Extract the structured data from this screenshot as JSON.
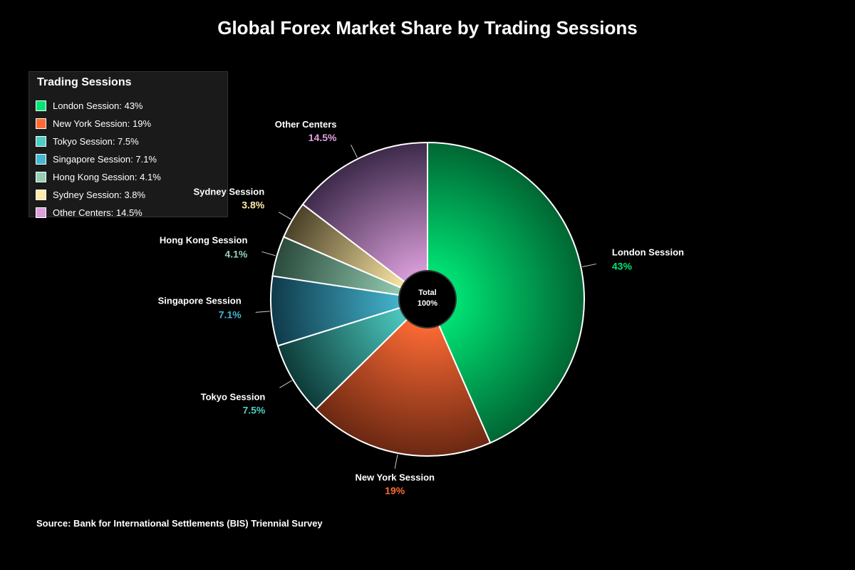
{
  "title": "Global Forex Market Share by Trading Sessions",
  "legend": {
    "title": "Trading Sessions"
  },
  "center_label": {
    "line1": "Total",
    "line2": "100%"
  },
  "source": "Source: Bank for International Settlements (BIS) Triennial Survey",
  "chart_data": {
    "type": "pie",
    "title": "Global Forex Market Share by Trading Sessions",
    "legend_position": "top-left",
    "start_angle_deg": 0,
    "direction": "clockwise",
    "slices": [
      {
        "name": "London Session",
        "value": 43,
        "value_label": "43%",
        "legend_label": "London Session: 43%",
        "color": "#00e676",
        "dark": "#006633"
      },
      {
        "name": "New York Session",
        "value": 19,
        "value_label": "19%",
        "legend_label": "New York Session: 19%",
        "color": "#ff6b35",
        "dark": "#6b2812"
      },
      {
        "name": "Tokyo Session",
        "value": 7.5,
        "value_label": "7.5%",
        "legend_label": "Tokyo Session: 7.5%",
        "color": "#4ecdc4",
        "dark": "#0d3b38"
      },
      {
        "name": "Singapore Session",
        "value": 7.1,
        "value_label": "7.1%",
        "legend_label": "Singapore Session: 7.1%",
        "color": "#45b7d1",
        "dark": "#0f3a4a"
      },
      {
        "name": "Hong Kong Session",
        "value": 4.1,
        "value_label": "4.1%",
        "legend_label": "Hong Kong Session: 4.1%",
        "color": "#96ceb4",
        "dark": "#2a4a3c"
      },
      {
        "name": "Sydney Session",
        "value": 3.8,
        "value_label": "3.8%",
        "legend_label": "Sydney Session: 3.8%",
        "color": "#ffeaa7",
        "dark": "#4a4128"
      },
      {
        "name": "Other Centers",
        "value": 14.5,
        "value_label": "14.5%",
        "legend_label": "Other Centers: 14.5%",
        "color": "#dda0dd",
        "dark": "#3d2a4a"
      }
    ]
  }
}
